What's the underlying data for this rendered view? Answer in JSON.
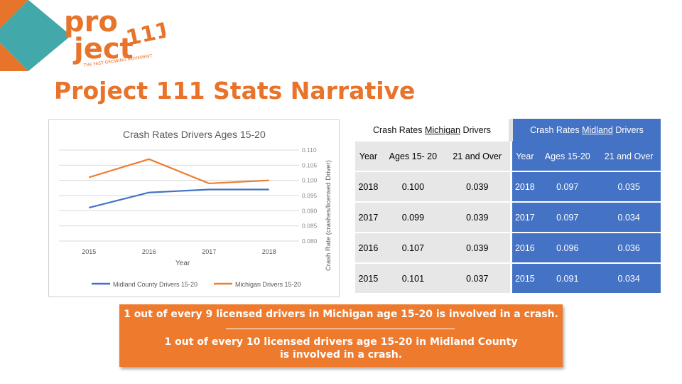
{
  "slide": {
    "title": "Project 111 Stats Narrative",
    "logo": {
      "word1": "pro",
      "word2": "ject",
      "number": "111",
      "tagline": "THE FAST-GROWING MOVEMENT"
    },
    "colors": {
      "orange": "#e8732a",
      "teal": "#2e9fa0",
      "blue": "#4472c4",
      "gray": "#e7e7e7"
    }
  },
  "chart_data": {
    "type": "line",
    "title": "Crash Rates Drivers Ages 15-20",
    "xlabel": "Year",
    "ylabel": "Crash Rate (crashes/licensed Driver)",
    "categories": [
      "2015",
      "2016",
      "2017",
      "2018"
    ],
    "yticks": [
      "0.080",
      "0.085",
      "0.090",
      "0.095",
      "0.100",
      "0.105",
      "0.110"
    ],
    "ylim": [
      0.08,
      0.11
    ],
    "series": [
      {
        "name": "Midland County Drivers 15-20",
        "color": "#4472c4",
        "values": [
          0.091,
          0.096,
          0.097,
          0.097
        ]
      },
      {
        "name": "Michigan Drivers 15-20",
        "color": "#ed7d31",
        "values": [
          0.101,
          0.107,
          0.099,
          0.1
        ]
      }
    ],
    "legend": "bottom",
    "grid": true
  },
  "table": {
    "michigan_header": {
      "pre": "Crash Rates ",
      "under": "Michigan",
      "post": " Drivers"
    },
    "midland_header": {
      "pre": "Crash Rates ",
      "under": "Midland",
      "post": " Drivers"
    },
    "columns": [
      "Year",
      "Ages 15-20",
      "21 and Over"
    ],
    "michigan_columns": [
      "Year",
      "Ages 15- 20",
      "21 and Over"
    ],
    "michigan_rows": [
      [
        "2018",
        "0.100",
        "0.039"
      ],
      [
        "2017",
        "0.099",
        "0.039"
      ],
      [
        "2016",
        "0.107",
        "0.039"
      ],
      [
        "2015",
        "0.101",
        "0.037"
      ]
    ],
    "midland_rows": [
      [
        "2018",
        "0.097",
        "0.035"
      ],
      [
        "2017",
        "0.097",
        "0.034"
      ],
      [
        "2016",
        "0.096",
        "0.036"
      ],
      [
        "2015",
        "0.091",
        "0.034"
      ]
    ]
  },
  "banner": {
    "line1": "1 out of every 9 licensed drivers in Michigan age 15-20 is involved in a crash.",
    "line2": "1 out of every 10 licensed drivers age 15-20 in Midland County",
    "line3": "is involved in a crash."
  }
}
